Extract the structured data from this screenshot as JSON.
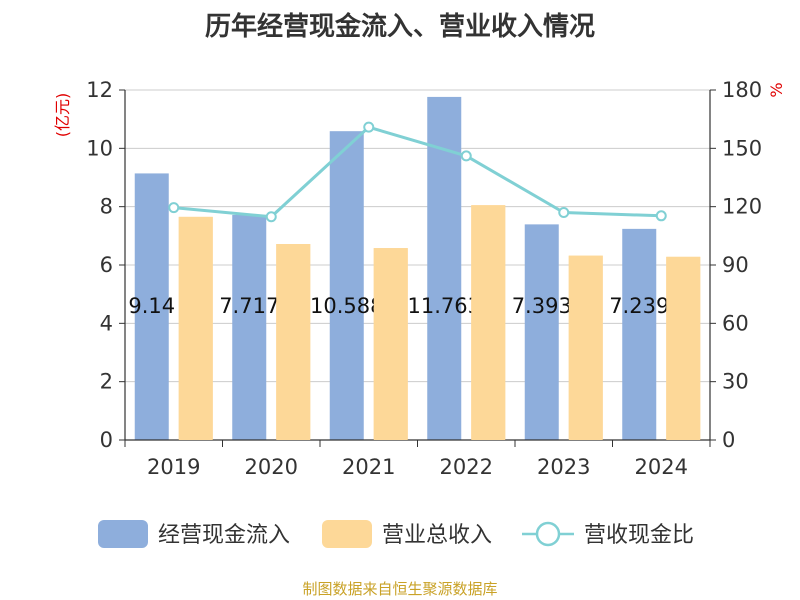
{
  "chart_data": {
    "type": "bar",
    "title": "历年经营现金流入、营业收入情况",
    "categories": [
      "2019",
      "2020",
      "2021",
      "2022",
      "2023",
      "2024"
    ],
    "left_axis": {
      "unit": "(亿元)",
      "ylim": [
        0,
        12
      ],
      "ticks": [
        0,
        2,
        4,
        6,
        8,
        10,
        12
      ]
    },
    "right_axis": {
      "unit": "%",
      "ylim": [
        0,
        180
      ],
      "ticks": [
        0,
        30,
        60,
        90,
        120,
        150,
        180
      ]
    },
    "series": [
      {
        "name": "经营现金流入",
        "type": "bar",
        "axis": "left",
        "color": "#8eaedc",
        "values": [
          9.14,
          7.717,
          10.588,
          11.763,
          7.393,
          7.239
        ],
        "labels": [
          "9.14",
          "7.717",
          "10.588",
          "11.763",
          "7.393",
          "7.239"
        ]
      },
      {
        "name": "营业总收入",
        "type": "bar",
        "axis": "left",
        "color": "#fdd898",
        "values": [
          7.65,
          6.72,
          6.58,
          8.05,
          6.32,
          6.28
        ]
      },
      {
        "name": "营收现金比",
        "type": "line",
        "axis": "right",
        "color": "#80d0d4",
        "values": [
          119.5,
          114.8,
          160.9,
          146.1,
          117.0,
          115.3
        ]
      }
    ],
    "grid": true,
    "legend_position": "bottom"
  },
  "source": "制图数据来自恒生聚源数据库"
}
